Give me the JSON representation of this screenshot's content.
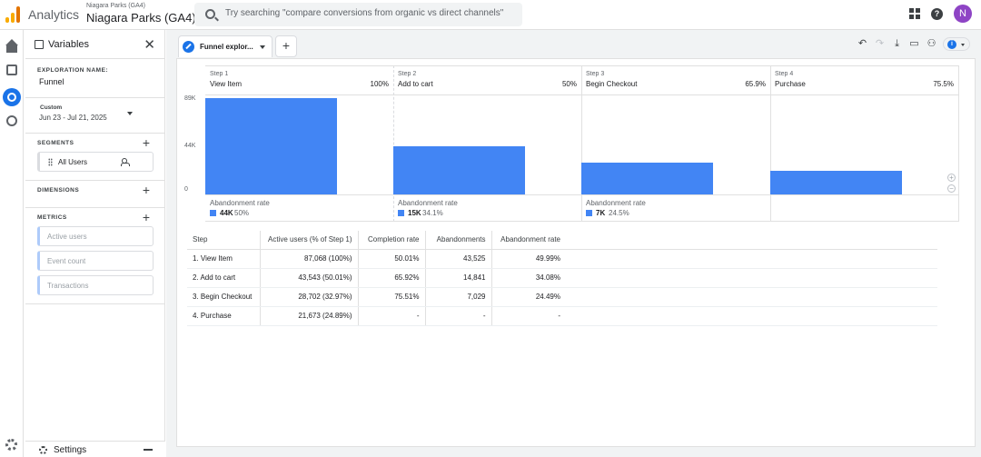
{
  "header": {
    "app_name": "Analytics",
    "property_small": "Niagara Parks (GA4)",
    "property_big": "Niagara Parks (GA4)",
    "search_placeholder": "Try searching \"compare conversions from organic vs direct channels\"",
    "avatar_letter": "N"
  },
  "variables": {
    "title": "Variables",
    "exploration_label": "EXPLORATION NAME:",
    "exploration_name": "Funnel",
    "date_kind": "Custom",
    "date_range": "Jun 23 - Jul 21, 2025",
    "segments_label": "SEGMENTS",
    "segment_item": "All Users",
    "dimensions_label": "DIMENSIONS",
    "metrics_label": "METRICS",
    "metrics": [
      "Active users",
      "Event count",
      "Transactions"
    ],
    "settings_label": "Settings"
  },
  "tab": {
    "label": "Funnel explor..."
  },
  "chart_data": {
    "type": "bar",
    "yticks": [
      89000,
      44000,
      0
    ],
    "ylim": [
      0,
      89000
    ],
    "categories": [
      "View Item",
      "Add to cart",
      "Begin Checkout",
      "Purchase"
    ],
    "values": [
      87068,
      43543,
      28702,
      21673
    ],
    "steps": [
      {
        "num": "Step 1",
        "name": "View Item",
        "pct": "100%",
        "value": 87068,
        "ab_label": "Abandonment rate",
        "ab_val": 44000,
        "ab_pct": "50%"
      },
      {
        "num": "Step 2",
        "name": "Add to cart",
        "pct": "50%",
        "value": 43543,
        "ab_label": "Abandonment rate",
        "ab_val": 15000,
        "ab_pct": "34.1%"
      },
      {
        "num": "Step 3",
        "name": "Begin Checkout",
        "pct": "65.9%",
        "value": 28702,
        "ab_label": "Abandonment rate",
        "ab_val": 7000,
        "ab_pct": "24.5%"
      },
      {
        "num": "Step 4",
        "name": "Purchase",
        "pct": "75.5%",
        "value": 21673
      }
    ],
    "bar_color": "#4285f4"
  },
  "table": {
    "headers": [
      "Step",
      "Active users (% of Step 1)",
      "Completion rate",
      "Abandonments",
      "Abandonment rate"
    ],
    "rows": [
      [
        "1. View Item",
        "87,068 (100%)",
        "50.01%",
        "43,525",
        "49.99%"
      ],
      [
        "2. Add to cart",
        "43,543 (50.01%)",
        "65.92%",
        "14,841",
        "34.08%"
      ],
      [
        "3. Begin Checkout",
        "28,702 (32.97%)",
        "75.51%",
        "7,029",
        "24.49%"
      ],
      [
        "4. Purchase",
        "21,673 (24.89%)",
        "-",
        "-",
        "-"
      ]
    ]
  },
  "colors": {
    "accent": "#1a73e8",
    "logo": "#f9ab00",
    "avatar": "#8e44c5"
  }
}
